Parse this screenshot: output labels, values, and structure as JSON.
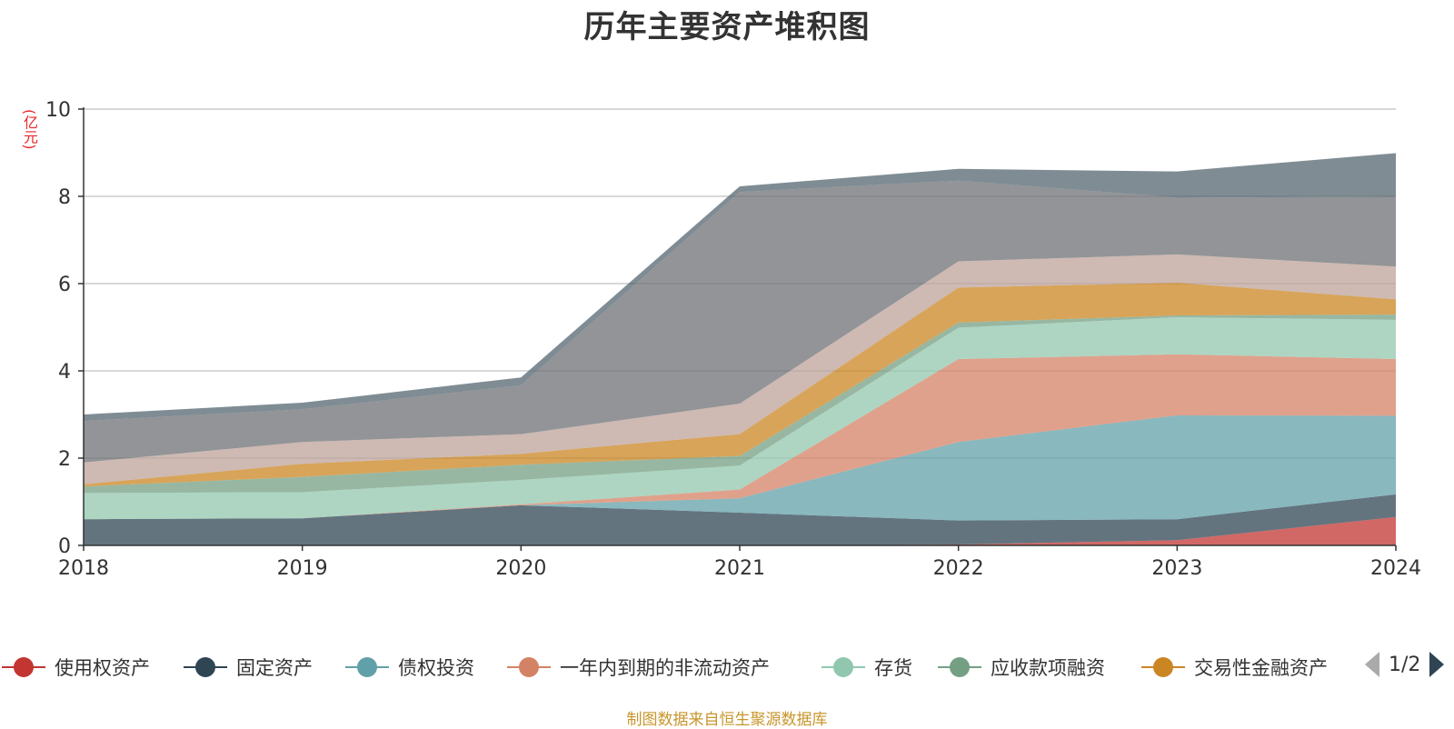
{
  "title": "历年主要资产堆积图",
  "unit_label": "(亿元)",
  "footer": "制图数据来自恒生聚源数据库",
  "pager": {
    "text": "1/2"
  },
  "legend": [
    {
      "name": "使用权资产",
      "color": "#c23531"
    },
    {
      "name": "固定资产",
      "color": "#2f4554"
    },
    {
      "name": "债权投资",
      "color": "#61a0a8"
    },
    {
      "name": "一年内到期的非流动资产",
      "color": "#d48265"
    },
    {
      "name": "存货",
      "color": "#91c7ae"
    },
    {
      "name": "应收款项融资",
      "color": "#749f83"
    },
    {
      "name": "交易性金融资产",
      "color": "#ca8622"
    }
  ],
  "chart_data": {
    "type": "area",
    "stacked": true,
    "categories": [
      "2018",
      "2019",
      "2020",
      "2021",
      "2022",
      "2023",
      "2024"
    ],
    "ylim": [
      0,
      10
    ],
    "yticks": [
      0,
      2,
      4,
      6,
      8,
      10
    ],
    "grid": true,
    "legend_position": "bottom",
    "series": [
      {
        "name": "使用权资产",
        "color": "#c23531",
        "values": [
          0,
          0,
          0,
          0,
          0.02,
          0.12,
          0.65
        ]
      },
      {
        "name": "固定资产",
        "color": "#2f4554",
        "values": [
          0.6,
          0.62,
          0.92,
          0.75,
          0.55,
          0.48,
          0.52
        ]
      },
      {
        "name": "债权投资",
        "color": "#61a0a8",
        "values": [
          0,
          0,
          0,
          0.33,
          1.8,
          2.38,
          1.8
        ]
      },
      {
        "name": "一年内到期的非流动资产",
        "color": "#d48265",
        "values": [
          0,
          0,
          0.02,
          0.2,
          1.9,
          1.4,
          1.3
        ]
      },
      {
        "name": "存货",
        "color": "#91c7ae",
        "values": [
          0.6,
          0.6,
          0.56,
          0.55,
          0.72,
          0.85,
          0.9
        ]
      },
      {
        "name": "应收款项融资",
        "color": "#749f83",
        "values": [
          0.15,
          0.35,
          0.35,
          0.22,
          0.12,
          0.04,
          0.12
        ]
      },
      {
        "name": "交易性金融资产",
        "color": "#ca8622",
        "values": [
          0.05,
          0.3,
          0.25,
          0.5,
          0.8,
          0.75,
          0.35
        ]
      },
      {
        "name": "",
        "color": "#bda29a",
        "values": [
          0.5,
          0.5,
          0.45,
          0.7,
          0.6,
          0.65,
          0.75
        ]
      },
      {
        "name": "",
        "color": "#6e7074",
        "values": [
          0.95,
          0.75,
          1.12,
          4.85,
          1.85,
          1.3,
          1.6
        ]
      },
      {
        "name": "",
        "color": "#546570",
        "values": [
          0.15,
          0.15,
          0.18,
          0.13,
          0.27,
          0.6,
          1.0
        ]
      }
    ]
  }
}
